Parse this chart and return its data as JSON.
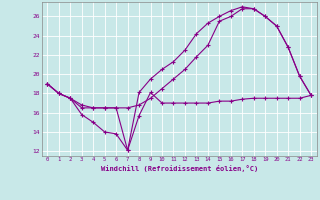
{
  "xlabel": "Windchill (Refroidissement éolien,°C)",
  "background_color": "#c8e8e8",
  "line_color": "#880088",
  "xlim": [
    -0.5,
    23.5
  ],
  "ylim": [
    11.5,
    27.5
  ],
  "yticks": [
    12,
    14,
    16,
    18,
    20,
    22,
    24,
    26
  ],
  "xticks": [
    0,
    1,
    2,
    3,
    4,
    5,
    6,
    7,
    8,
    9,
    10,
    11,
    12,
    13,
    14,
    15,
    16,
    17,
    18,
    19,
    20,
    21,
    22,
    23
  ],
  "curve1_x": [
    0,
    1,
    2,
    3,
    4,
    5,
    6,
    7,
    8,
    9,
    10,
    11,
    12,
    13,
    14,
    15,
    16,
    17,
    18,
    19,
    20,
    21,
    22,
    23
  ],
  "curve1_y": [
    19.0,
    18.0,
    17.5,
    16.5,
    16.5,
    16.5,
    16.5,
    12.1,
    15.7,
    18.1,
    17.0,
    17.0,
    17.0,
    17.0,
    17.0,
    17.2,
    17.2,
    17.4,
    17.5,
    17.5,
    17.5,
    17.5,
    17.5,
    17.8
  ],
  "curve2_x": [
    0,
    1,
    2,
    3,
    4,
    5,
    6,
    7,
    8,
    9,
    10,
    11,
    12,
    13,
    14,
    15,
    16,
    17,
    18,
    19,
    20,
    21,
    22,
    23
  ],
  "curve2_y": [
    19.0,
    18.0,
    17.5,
    15.8,
    15.0,
    14.0,
    13.8,
    12.1,
    18.1,
    19.5,
    20.5,
    21.3,
    22.5,
    24.2,
    25.3,
    26.0,
    26.6,
    27.0,
    26.8,
    26.0,
    25.0,
    22.8,
    19.8,
    17.8
  ],
  "curve3_x": [
    0,
    1,
    2,
    3,
    4,
    5,
    6,
    7,
    8,
    9,
    10,
    11,
    12,
    13,
    14,
    15,
    16,
    17,
    18,
    19,
    20,
    21,
    22,
    23
  ],
  "curve3_y": [
    19.0,
    18.0,
    17.5,
    16.8,
    16.5,
    16.5,
    16.5,
    16.5,
    16.8,
    17.5,
    18.5,
    19.5,
    20.5,
    21.8,
    23.0,
    25.5,
    26.0,
    26.8,
    26.8,
    26.0,
    25.0,
    22.8,
    19.8,
    17.8
  ]
}
